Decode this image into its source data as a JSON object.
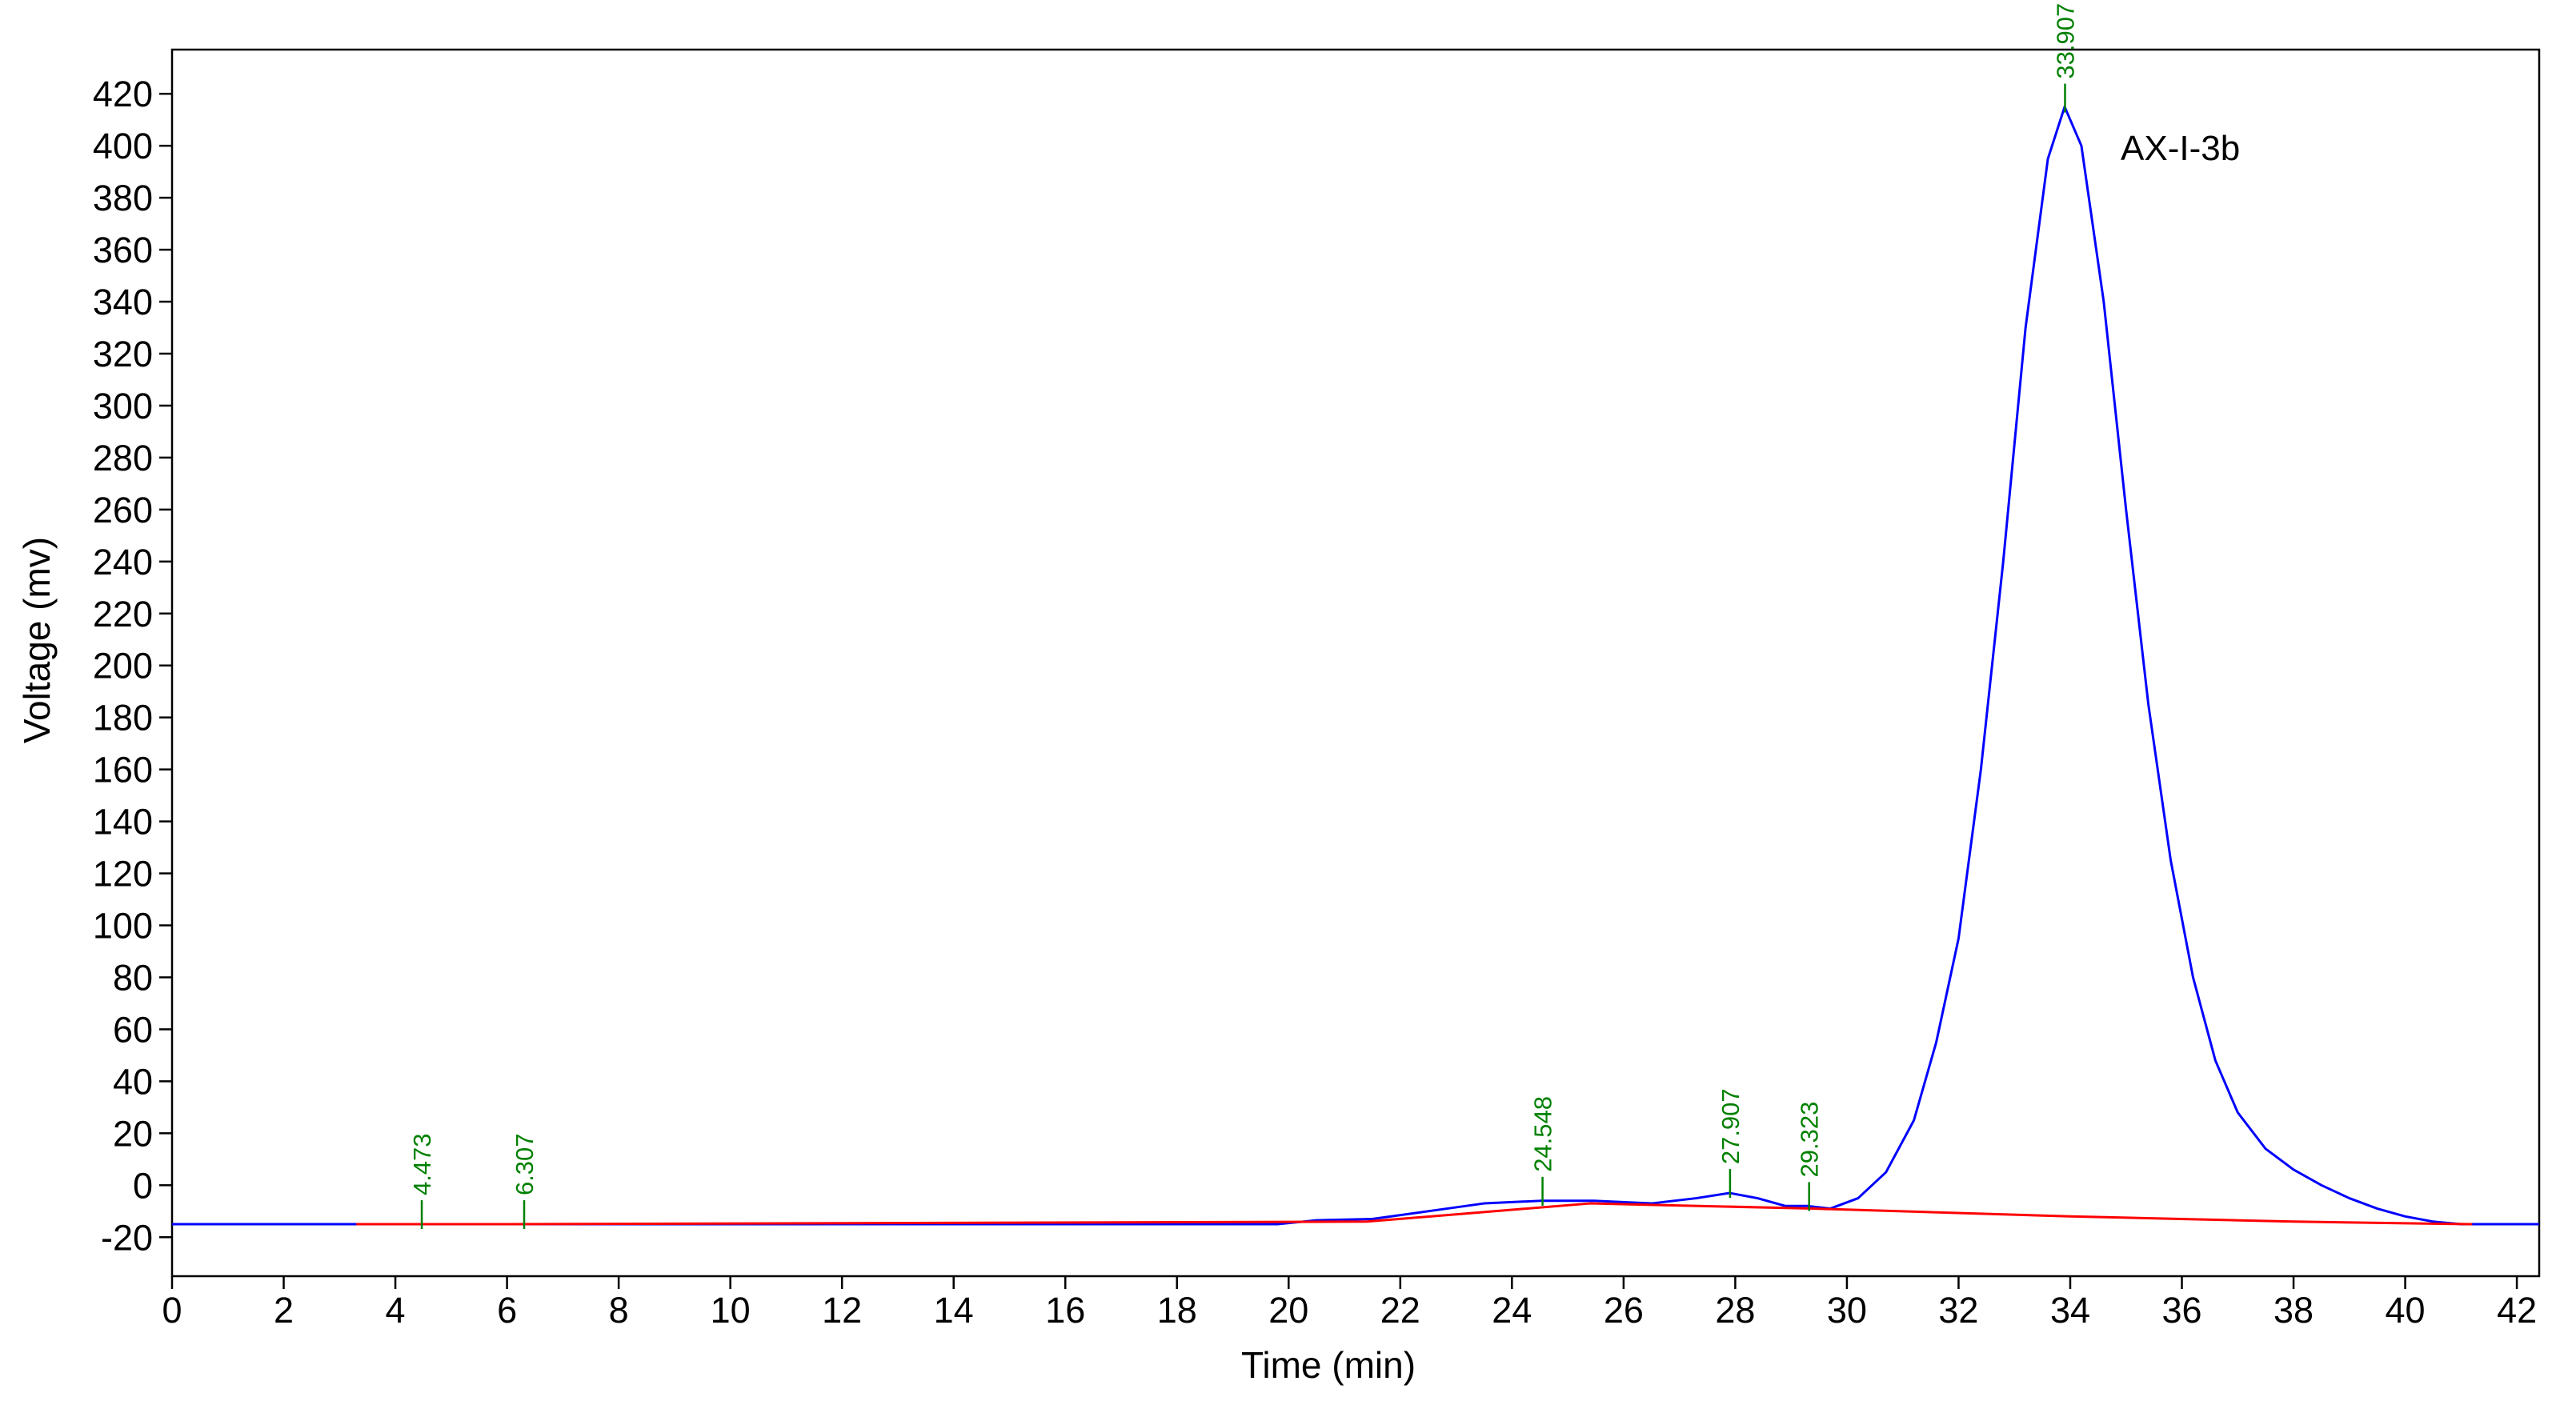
{
  "chart_data": {
    "type": "line",
    "x_label": "Time (min)",
    "y_label": "Voltage (mv)",
    "annotation": "AX-I-3b",
    "xlim": [
      0,
      42.4
    ],
    "xticks": [
      0,
      2,
      4,
      6,
      8,
      10,
      12,
      14,
      16,
      18,
      20,
      22,
      24,
      26,
      28,
      30,
      32,
      34,
      36,
      38,
      40,
      42
    ],
    "ylim": [
      -35,
      437
    ],
    "yticks": [
      -20,
      0,
      20,
      40,
      60,
      80,
      100,
      120,
      140,
      160,
      180,
      200,
      220,
      240,
      260,
      280,
      300,
      320,
      340,
      360,
      380,
      400,
      420
    ],
    "grid": false,
    "series": [
      {
        "color": "#0000ff",
        "x": [
          0,
          4,
          8,
          12,
          16,
          19.8,
          20.5,
          21.5,
          22.5,
          23.5,
          24.5,
          25.5,
          26.5,
          27.3,
          27.9,
          28.4,
          28.9,
          29.3,
          29.7,
          30.2,
          30.7,
          31.2,
          31.6,
          32.0,
          32.4,
          32.8,
          33.2,
          33.6,
          33.9,
          34.2,
          34.6,
          35.0,
          35.4,
          35.8,
          36.2,
          36.6,
          37.0,
          37.5,
          38.0,
          38.5,
          39.0,
          39.5,
          40.0,
          40.5,
          41.0,
          42.4
        ],
        "values": [
          -15,
          -15,
          -15,
          -15,
          -15,
          -15,
          -13.5,
          -13,
          -10,
          -7,
          -6,
          -6,
          -7,
          -5,
          -3,
          -5,
          -8,
          -8,
          -9,
          -5,
          5,
          25,
          55,
          95,
          160,
          240,
          330,
          395,
          415,
          400,
          340,
          260,
          185,
          125,
          80,
          48,
          28,
          14,
          6,
          0,
          -5,
          -9,
          -12,
          -14,
          -15,
          -15
        ]
      },
      {
        "color": "#ff0000",
        "x": [
          3.3,
          5.6,
          21.4,
          25.4,
          29.4,
          34,
          38,
          41.2
        ],
        "values": [
          -15,
          -15,
          -14,
          -7,
          -9,
          -12,
          -14,
          -15
        ]
      }
    ],
    "peaks": [
      4.473,
      6.307,
      24.548,
      27.907,
      29.323,
      33.907
    ],
    "peak_color": "#008000"
  }
}
